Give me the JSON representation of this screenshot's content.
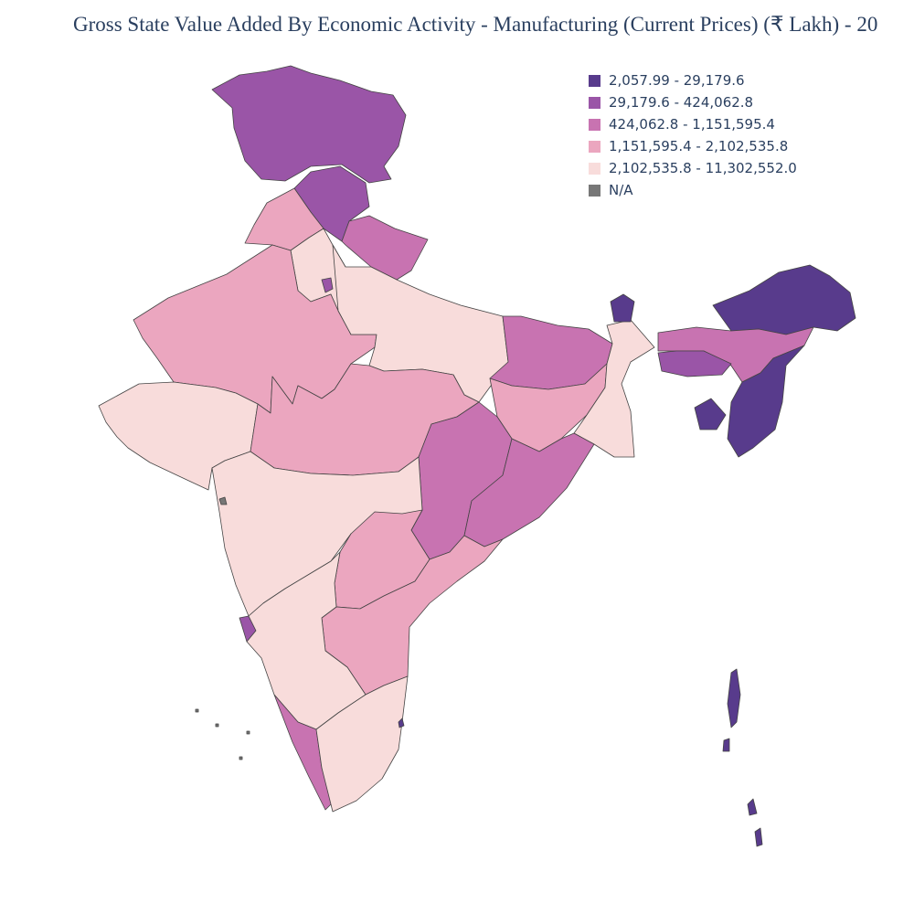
{
  "title": "Gross State Value Added By Economic Activity - Manufacturing (Current Prices) (₹ Lakh) - 20",
  "legend": [
    {
      "label": "2,057.99 - 29,179.6",
      "color": "#583b8c"
    },
    {
      "label": "29,179.6 - 424,062.8",
      "color": "#9a55a7"
    },
    {
      "label": "424,062.8 - 1,151,595.4",
      "color": "#c873b1"
    },
    {
      "label": "1,151,595.4 - 2,102,535.8",
      "color": "#eba6bf"
    },
    {
      "label": "2,102,535.8 - 11,302,552.0",
      "color": "#f8dcdb"
    },
    {
      "label": "N/A",
      "color": "#777777"
    }
  ]
}
